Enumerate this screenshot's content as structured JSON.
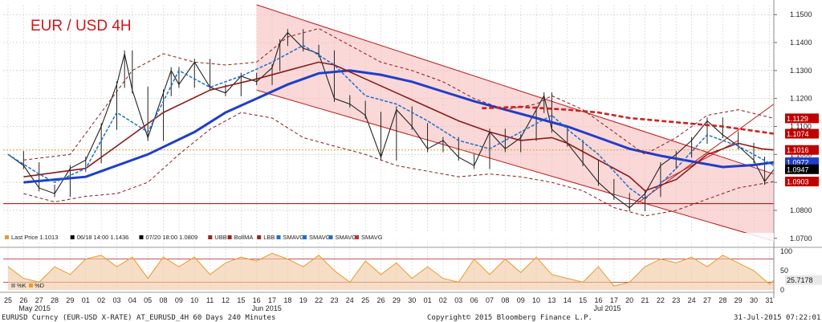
{
  "chart_data": {
    "type": "line",
    "title": "EUR / USD 4H",
    "y_axis": {
      "ylim": [
        1.0685,
        1.1535
      ],
      "ticks": [
        "1.0700",
        "1.0800",
        "1.0900",
        "1.1000",
        "1.1100",
        "1.1200",
        "1.1300",
        "1.1400",
        "1.1500"
      ]
    },
    "price_labels": [
      {
        "text": "1.1129",
        "value": 1.1129,
        "color": "#c00000"
      },
      {
        "text": "1.1074",
        "value": 1.1074,
        "color": "#c00000"
      },
      {
        "text": "1.1016",
        "value": 1.1016,
        "color": "#c00000"
      },
      {
        "text": "1.0972",
        "value": 1.0972,
        "color": "#1f3ec9"
      },
      {
        "text": "1.0947",
        "value": 1.0947,
        "color": "#000000"
      },
      {
        "text": "1.0903",
        "value": 1.0903,
        "color": "#c00000"
      }
    ],
    "horizontal_levels": [
      {
        "value": 1.1016,
        "color": "#e89b2e",
        "style": "dotted"
      },
      {
        "value": 1.0824,
        "color": "#b00000",
        "style": "solid"
      }
    ],
    "x_axis": {
      "day_labels": [
        "25",
        "26",
        "27",
        "28",
        "29",
        "01",
        "02",
        "03",
        "04",
        "05",
        "08",
        "09",
        "10",
        "11",
        "12",
        "15",
        "16",
        "17",
        "18",
        "19",
        "22",
        "23",
        "24",
        "25",
        "26",
        "29",
        "30",
        "01",
        "02",
        "03",
        "06",
        "07",
        "08",
        "09",
        "10",
        "13",
        "14",
        "15",
        "16",
        "17",
        "20",
        "21",
        "22",
        "23",
        "24",
        "27",
        "28",
        "29",
        "30",
        "31"
      ],
      "month_labels": [
        {
          "text": "May 2015",
          "day_index": 1
        },
        {
          "text": "Jun 2015",
          "day_index": 16
        },
        {
          "text": "Jul 2015",
          "day_index": 38
        }
      ]
    },
    "legend": [
      {
        "label": "Last Price",
        "value": "1.1013",
        "color": "#e89b2e"
      },
      {
        "label": "06/18 14:00 1.1436",
        "color": "#000000"
      },
      {
        "label": "07/20 18:00 1.0809",
        "color": "#000000"
      },
      {
        "label": "UBB",
        "color": "#a02020"
      },
      {
        "label": "BollMA",
        "color": "#a02020"
      },
      {
        "label": "LBB",
        "color": "#a02020"
      },
      {
        "label": "SMAVG",
        "color": "#1f6fc9"
      },
      {
        "label": "SMAVG",
        "color": "#1f6fc9"
      },
      {
        "label": "SMAVG",
        "color": "#1f6fc9"
      },
      {
        "label": "SMAVG",
        "color": "#c03030"
      }
    ],
    "series": [
      {
        "name": "SMAVG",
        "values": [
          [
            1,
            1.09
          ],
          [
            5,
            1.092
          ],
          [
            6,
            1.094
          ],
          [
            9,
            1.1
          ],
          [
            12,
            1.108
          ],
          [
            14,
            1.115
          ],
          [
            16,
            1.12
          ],
          [
            18,
            1.125
          ],
          [
            20,
            1.129
          ],
          [
            22,
            1.13
          ],
          [
            24,
            1.1285
          ],
          [
            26,
            1.126
          ],
          [
            28,
            1.1225
          ],
          [
            30,
            1.119
          ],
          [
            32,
            1.116
          ],
          [
            34,
            1.113
          ],
          [
            36,
            1.11
          ],
          [
            38,
            1.106
          ],
          [
            40,
            1.102
          ],
          [
            42,
            1.0995
          ],
          [
            44,
            1.0975
          ],
          [
            46,
            1.0955
          ],
          [
            48,
            1.0962
          ],
          [
            49.3,
            1.0972
          ]
        ],
        "color": "#1f3ec9"
      },
      {
        "name": "BollMA",
        "values": [
          [
            1,
            1.092
          ],
          [
            5,
            1.095
          ],
          [
            7,
            1.103
          ],
          [
            10,
            1.115
          ],
          [
            13,
            1.123
          ],
          [
            16,
            1.127
          ],
          [
            18,
            1.13
          ],
          [
            20,
            1.133
          ],
          [
            21,
            1.132
          ],
          [
            23,
            1.127
          ],
          [
            25,
            1.122
          ],
          [
            27,
            1.117
          ],
          [
            29,
            1.112
          ],
          [
            31,
            1.108
          ],
          [
            33,
            1.105
          ],
          [
            35,
            1.106
          ],
          [
            36,
            1.104
          ],
          [
            38,
            1.098
          ],
          [
            40,
            1.092
          ],
          [
            41,
            1.087
          ],
          [
            43,
            1.091
          ],
          [
            45,
            1.1
          ],
          [
            47,
            1.104
          ],
          [
            48.5,
            1.102
          ],
          [
            49.3,
            1.1016
          ]
        ],
        "color": "#8b1a1a"
      },
      {
        "name": "UBB",
        "values": [
          [
            1,
            1.098
          ],
          [
            4,
            1.1
          ],
          [
            6,
            1.115
          ],
          [
            8,
            1.13
          ],
          [
            10,
            1.136
          ],
          [
            12,
            1.133
          ],
          [
            14,
            1.132
          ],
          [
            16,
            1.133
          ],
          [
            18,
            1.142
          ],
          [
            20,
            1.145
          ],
          [
            22,
            1.139
          ],
          [
            24,
            1.133
          ],
          [
            26,
            1.13
          ],
          [
            28,
            1.126
          ],
          [
            30,
            1.12
          ],
          [
            32,
            1.116
          ],
          [
            34,
            1.118
          ],
          [
            35,
            1.121
          ],
          [
            37,
            1.116
          ],
          [
            39,
            1.108
          ],
          [
            41,
            1.1
          ],
          [
            43,
            1.106
          ],
          [
            45,
            1.114
          ],
          [
            47,
            1.116
          ],
          [
            49.3,
            1.1129
          ]
        ],
        "color": "#8b1a1a"
      },
      {
        "name": "LBB",
        "values": [
          [
            1,
            1.086
          ],
          [
            3,
            1.083
          ],
          [
            5,
            1.085
          ],
          [
            7,
            1.086
          ],
          [
            9,
            1.09
          ],
          [
            11,
            1.1
          ],
          [
            13,
            1.109
          ],
          [
            15,
            1.115
          ],
          [
            17,
            1.113
          ],
          [
            19,
            1.106
          ],
          [
            21,
            1.103
          ],
          [
            23,
            1.1
          ],
          [
            25,
            1.096
          ],
          [
            27,
            1.094
          ],
          [
            29,
            1.092
          ],
          [
            31,
            1.093
          ],
          [
            33,
            1.092
          ],
          [
            35,
            1.09
          ],
          [
            37,
            1.087
          ],
          [
            39,
            1.081
          ],
          [
            41,
            1.078
          ],
          [
            43,
            1.08
          ],
          [
            45,
            1.084
          ],
          [
            47,
            1.088
          ],
          [
            49.3,
            1.0903
          ]
        ],
        "color": "#8b1a1a"
      },
      {
        "name": "SMAVG",
        "values": [
          [
            30.5,
            1.1165
          ],
          [
            33,
            1.117
          ],
          [
            36,
            1.116
          ],
          [
            38,
            1.115
          ],
          [
            40,
            1.113
          ],
          [
            42,
            1.112
          ],
          [
            44,
            1.111
          ],
          [
            46,
            1.11
          ],
          [
            49.3,
            1.1074
          ]
        ],
        "color": "#d02020"
      },
      {
        "name": "SMAVG",
        "values": [
          [
            0,
            1.1
          ],
          [
            2,
            1.093
          ],
          [
            3,
            1.09
          ],
          [
            5,
            1.095
          ],
          [
            7,
            1.115
          ],
          [
            9,
            1.108
          ],
          [
            11,
            1.13
          ],
          [
            13,
            1.124
          ],
          [
            15,
            1.128
          ],
          [
            17,
            1.133
          ],
          [
            19,
            1.139
          ],
          [
            21,
            1.132
          ],
          [
            23,
            1.121
          ],
          [
            25,
            1.118
          ],
          [
            27,
            1.112
          ],
          [
            29,
            1.105
          ],
          [
            31,
            1.102
          ],
          [
            33,
            1.108
          ],
          [
            35,
            1.114
          ],
          [
            36,
            1.109
          ],
          [
            38,
            1.1
          ],
          [
            40,
            1.088
          ],
          [
            41,
            1.084
          ],
          [
            43,
            1.095
          ],
          [
            45,
            1.107
          ],
          [
            47,
            1.103
          ],
          [
            49.3,
            1.096
          ]
        ],
        "color": "#1f6fc9"
      }
    ],
    "price_path": [
      [
        0,
        1.1
      ],
      [
        1,
        1.096
      ],
      [
        2,
        1.088
      ],
      [
        3,
        1.086
      ],
      [
        4,
        1.095
      ],
      [
        5,
        1.098
      ],
      [
        6,
        1.11
      ],
      [
        7,
        1.125
      ],
      [
        7.5,
        1.136
      ],
      [
        8,
        1.123
      ],
      [
        9,
        1.106
      ],
      [
        10,
        1.122
      ],
      [
        10.5,
        1.13
      ],
      [
        11,
        1.125
      ],
      [
        12,
        1.133
      ],
      [
        13,
        1.124
      ],
      [
        14,
        1.122
      ],
      [
        15,
        1.128
      ],
      [
        16,
        1.126
      ],
      [
        17,
        1.131
      ],
      [
        17.5,
        1.14
      ],
      [
        18,
        1.1436
      ],
      [
        19,
        1.138
      ],
      [
        20,
        1.136
      ],
      [
        21,
        1.12
      ],
      [
        22,
        1.118
      ],
      [
        23,
        1.114
      ],
      [
        24,
        1.099
      ],
      [
        25,
        1.116
      ],
      [
        26,
        1.11
      ],
      [
        27,
        1.102
      ],
      [
        28,
        1.105
      ],
      [
        29,
        1.099
      ],
      [
        30,
        1.096
      ],
      [
        31,
        1.108
      ],
      [
        32,
        1.102
      ],
      [
        33,
        1.106
      ],
      [
        34,
        1.116
      ],
      [
        34.5,
        1.121
      ],
      [
        35,
        1.109
      ],
      [
        36,
        1.104
      ],
      [
        37,
        1.097
      ],
      [
        38,
        1.09
      ],
      [
        39,
        1.085
      ],
      [
        40,
        1.0809
      ],
      [
        41,
        1.086
      ],
      [
        42,
        1.096
      ],
      [
        43,
        1.1
      ],
      [
        44,
        1.105
      ],
      [
        45,
        1.112
      ],
      [
        46,
        1.107
      ],
      [
        47,
        1.103
      ],
      [
        48,
        1.098
      ],
      [
        48.7,
        1.0903
      ],
      [
        49.3,
        1.0947
      ]
    ],
    "channel": {
      "upper": [
        [
          16,
          1.1535
        ],
        [
          49.3,
          1.093
        ]
      ],
      "lower": [
        [
          16,
          1.123
        ],
        [
          49.3,
          1.069
        ]
      ],
      "end_lower": [
        [
          27.5,
          1.0685
        ]
      ]
    },
    "rising_channel": {
      "lower": [
        [
          40.5,
          1.0825
        ],
        [
          51,
          1.118
        ]
      ],
      "upper": [
        [
          42,
          1.09
        ],
        [
          47,
          1.105
        ]
      ]
    },
    "oscillator": {
      "ylim": [
        0,
        100
      ],
      "ticks": [
        "0",
        "50",
        "100"
      ],
      "levels": [
        80,
        20
      ],
      "value_label": "25.7178",
      "legend": [
        {
          "label": "%K",
          "color": "#999999"
        },
        {
          "label": "%D",
          "color": "#e89b2e"
        }
      ],
      "values": [
        [
          0,
          60
        ],
        [
          1,
          30
        ],
        [
          2,
          20
        ],
        [
          3,
          60
        ],
        [
          4,
          40
        ],
        [
          5,
          80
        ],
        [
          6,
          90
        ],
        [
          7,
          60
        ],
        [
          8,
          85
        ],
        [
          9,
          30
        ],
        [
          10,
          85
        ],
        [
          11,
          60
        ],
        [
          12,
          85
        ],
        [
          13,
          40
        ],
        [
          14,
          70
        ],
        [
          15,
          85
        ],
        [
          16,
          75
        ],
        [
          17,
          95
        ],
        [
          18,
          80
        ],
        [
          19,
          60
        ],
        [
          20,
          90
        ],
        [
          21,
          50
        ],
        [
          22,
          20
        ],
        [
          23,
          75
        ],
        [
          24,
          40
        ],
        [
          25,
          70
        ],
        [
          26,
          30
        ],
        [
          27,
          60
        ],
        [
          28,
          30
        ],
        [
          29,
          20
        ],
        [
          30,
          80
        ],
        [
          31,
          40
        ],
        [
          32,
          80
        ],
        [
          33,
          45
        ],
        [
          34,
          85
        ],
        [
          35,
          40
        ],
        [
          36,
          30
        ],
        [
          37,
          20
        ],
        [
          38,
          60
        ],
        [
          39,
          10
        ],
        [
          40,
          20
        ],
        [
          41,
          60
        ],
        [
          42,
          80
        ],
        [
          43,
          70
        ],
        [
          44,
          85
        ],
        [
          45,
          60
        ],
        [
          46,
          90
        ],
        [
          47,
          70
        ],
        [
          48,
          50
        ],
        [
          49,
          15
        ],
        [
          49.3,
          25
        ]
      ]
    }
  },
  "footer": {
    "left": "EURUSD Curncy (EUR-USD X-RATE) AT_EURUSD_4H 60 Days 240 Minutes",
    "center": "Copyright© 2015 Bloomberg Finance L.P.",
    "right": "31-Jul-2015 07:22:01"
  }
}
